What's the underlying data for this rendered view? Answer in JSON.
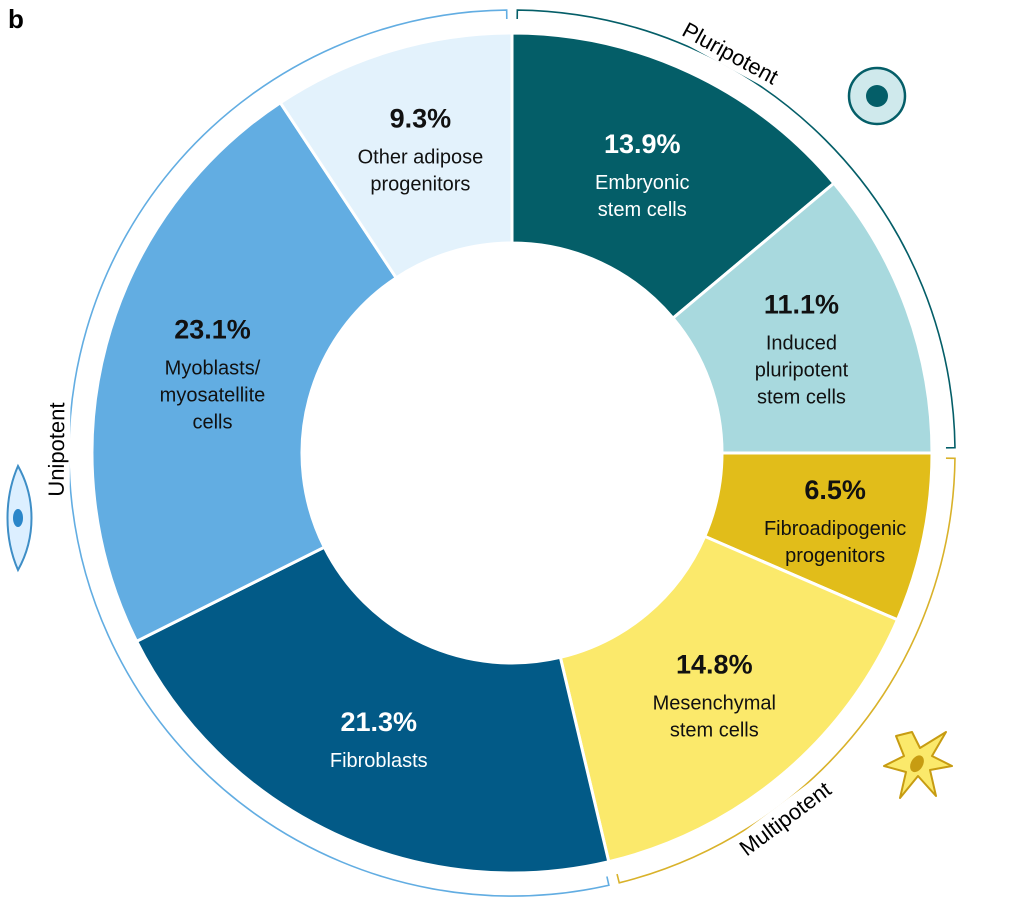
{
  "panel_label": "b",
  "chart_data": {
    "type": "pie",
    "variant": "donut",
    "categories": [
      "Embryonic stem cells",
      "Induced pluripotent stem cells",
      "Fibroadipogenic progenitors",
      "Mesenchymal stem cells",
      "Fibroblasts",
      "Myoblasts/ myosatellite cells",
      "Other adipose progenitors"
    ],
    "slices": [
      {
        "value": 13.9,
        "pct_label": "13.9%",
        "label_lines": [
          "Embryonic",
          "stem cells"
        ],
        "color": "#045e68",
        "text_color": "#ffffff"
      },
      {
        "value": 11.1,
        "pct_label": "11.1%",
        "label_lines": [
          "Induced",
          "pluripotent",
          "stem cells"
        ],
        "color": "#a8d9de",
        "text_color": "#111111"
      },
      {
        "value": 6.5,
        "pct_label": "6.5%",
        "label_lines": [
          "Fibroadipogenic",
          "progenitors"
        ],
        "color": "#e1bd1a",
        "text_color": "#111111"
      },
      {
        "value": 14.8,
        "pct_label": "14.8%",
        "label_lines": [
          "Mesenchymal",
          "stem cells"
        ],
        "color": "#fbe96b",
        "text_color": "#111111"
      },
      {
        "value": 21.3,
        "pct_label": "21.3%",
        "label_lines": [
          "Fibroblasts"
        ],
        "color": "#025a87",
        "text_color": "#ffffff"
      },
      {
        "value": 23.1,
        "pct_label": "23.1%",
        "label_lines": [
          "Myoblasts/",
          "myosatellite",
          "cells"
        ],
        "color": "#62ade2",
        "text_color": "#111111"
      },
      {
        "value": 9.3,
        "pct_label": "9.3%",
        "label_lines": [
          "Other adipose",
          "progenitors"
        ],
        "color": "#e3f2fc",
        "text_color": "#111111"
      }
    ],
    "groups": [
      {
        "name": "Pluripotent",
        "slices": [
          0,
          1
        ],
        "color": "#045e68",
        "icon": "pluripotent-cell-icon"
      },
      {
        "name": "Multipotent",
        "slices": [
          2,
          3
        ],
        "color": "#d9b22a",
        "icon": "multipotent-cell-icon"
      },
      {
        "name": "Unipotent",
        "slices": [
          4,
          5,
          6
        ],
        "color": "#62ade2",
        "icon": "unipotent-cell-icon"
      }
    ]
  }
}
